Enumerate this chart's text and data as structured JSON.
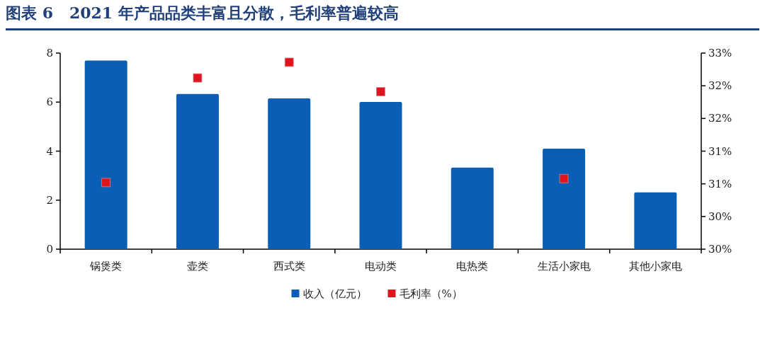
{
  "chart_data": {
    "type": "bar",
    "title": "图表 6   2021 年产品品类丰富且分散，毛利率普遍较高",
    "categories": [
      "锅煲类",
      "壶类",
      "西式类",
      "电动类",
      "电热类",
      "生活小家电",
      "其他小家电"
    ],
    "series": [
      {
        "name": "收入（亿元）",
        "type": "bar",
        "color": "#0a5eb5",
        "values": [
          7.7,
          6.33,
          6.15,
          6.01,
          3.33,
          4.1,
          2.32
        ]
      },
      {
        "name": "毛利率（%）",
        "type": "scatter",
        "axis": "y2",
        "marker": "square",
        "color": "#e0141e",
        "values": [
          31.02,
          32.62,
          32.86,
          32.41,
          null,
          31.08,
          null
        ]
      }
    ],
    "ylim": [
      0,
      8
    ],
    "yticks": [
      0,
      2,
      4,
      6,
      8
    ],
    "y2lim": [
      30,
      33
    ],
    "y2ticks": [
      {
        "value": 30,
        "label": "30%"
      },
      {
        "value": 30.5,
        "label": "30%"
      },
      {
        "value": 31,
        "label": "31%"
      },
      {
        "value": 31.5,
        "label": "31%"
      },
      {
        "value": 32,
        "label": "32%"
      },
      {
        "value": 32.5,
        "label": "32%"
      },
      {
        "value": 33,
        "label": "33%"
      }
    ],
    "legend": "bottom",
    "grid": false
  }
}
